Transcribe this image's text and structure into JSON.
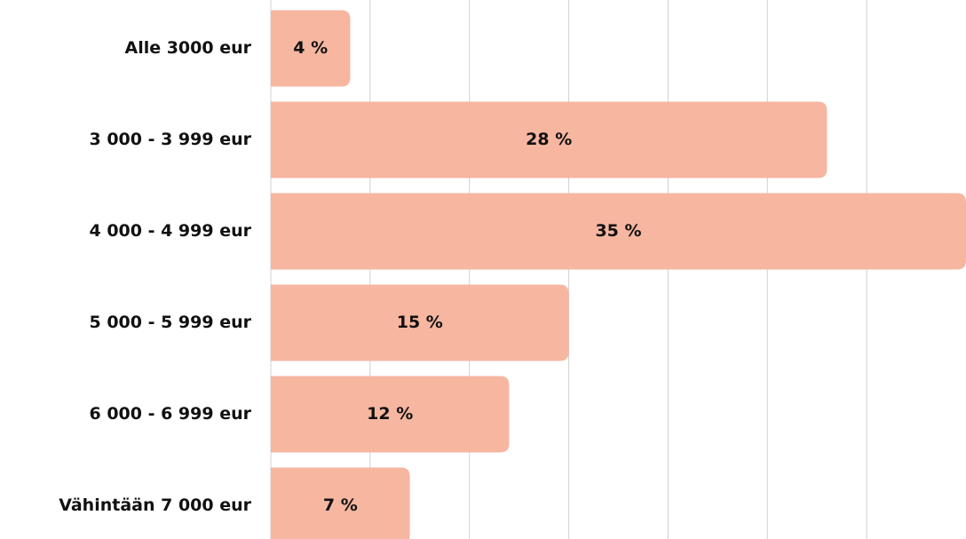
{
  "chart_data": {
    "type": "hbar",
    "categories": [
      "Alle 3000 eur",
      "3 000 - 3 999 eur ",
      "4 000 - 4 999 eur",
      "5 000 - 5 999 eur",
      "6 000 - 6 999 eur",
      "Vähintään 7 000 eur"
    ],
    "values": [
      4,
      28,
      35,
      15,
      12,
      7
    ],
    "value_labels": [
      "4 %",
      "28 %",
      "35 %",
      "15 %",
      "12 %",
      "7 %"
    ],
    "color": "#f6b6a0",
    "xlim": [
      0,
      35
    ],
    "xticks": [
      0,
      5,
      10,
      15,
      20,
      25,
      30
    ],
    "grid": true
  }
}
